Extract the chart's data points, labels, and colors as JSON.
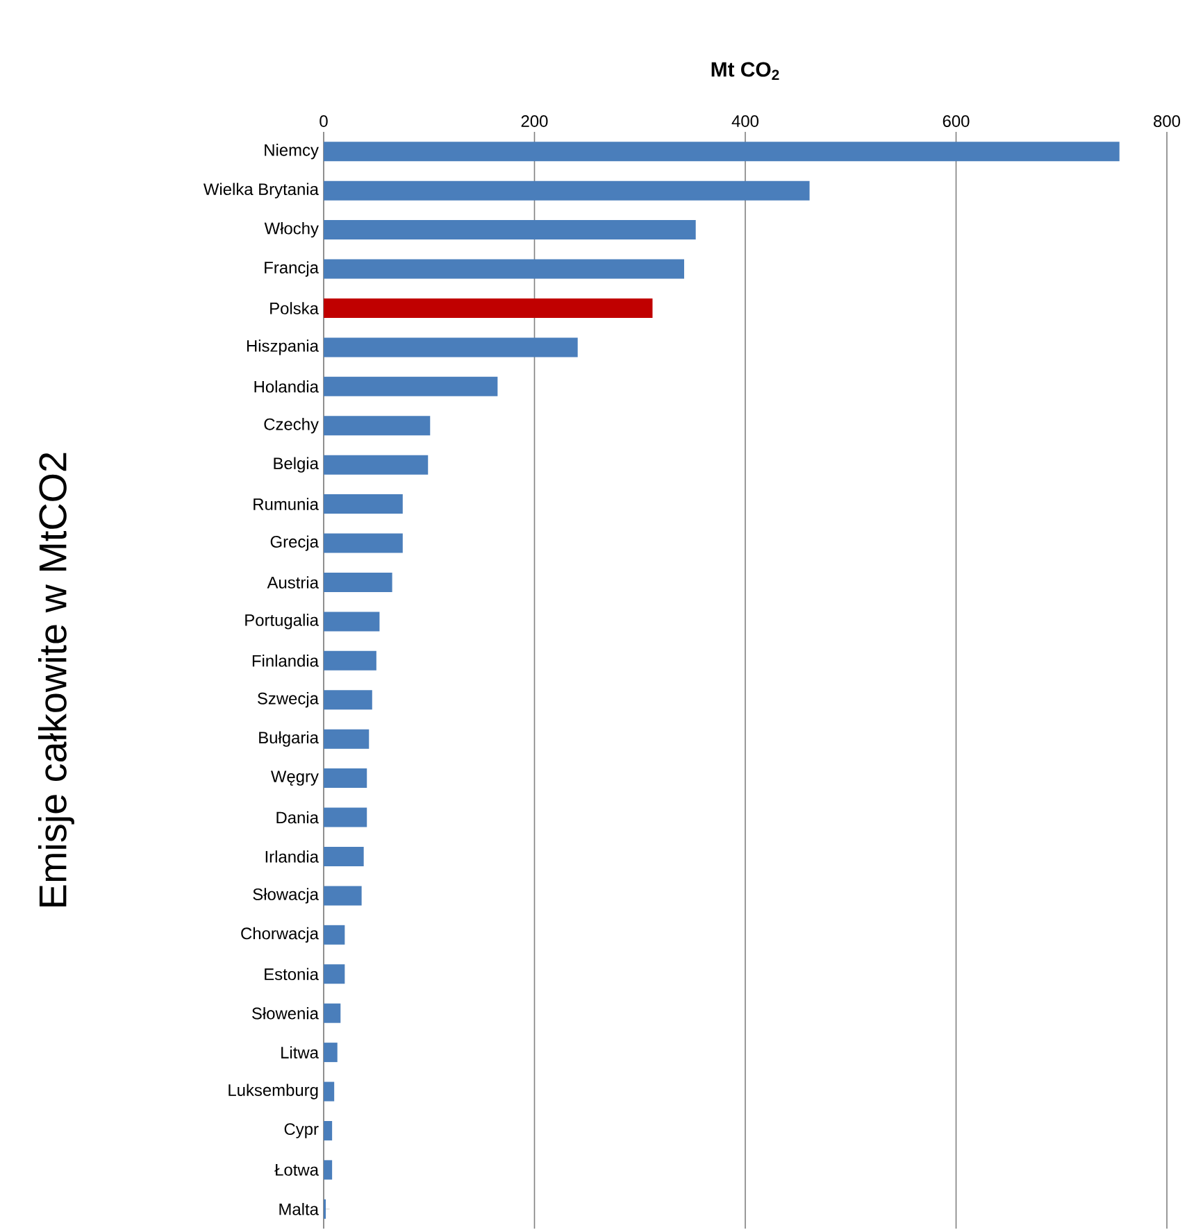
{
  "chart_data": {
    "type": "bar",
    "orientation": "horizontal",
    "title": "Mt CO$_{2}$",
    "ylabel": "Emisje całkowite w MtCO2",
    "categories": [
      "Niemcy",
      "Wielka Brytania",
      "Włochy",
      "Francja",
      "Polska",
      "Hiszpania",
      "Holandia",
      "Czechy",
      "Belgia",
      "Rumunia",
      "Grecja",
      "Austria",
      "Portugalia",
      "Finlandia",
      "Szwecja",
      "Bułgaria",
      "Węgry",
      "Dania",
      "Irlandia",
      "Słowacja",
      "Chorwacja",
      "Estonia",
      "Słowenia",
      "Litwa",
      "Luksemburg",
      "Cypr",
      "Łotwa",
      "Malta"
    ],
    "values": [
      755,
      461,
      353,
      342,
      312,
      241,
      165,
      101,
      99,
      75,
      75,
      65,
      53,
      50,
      46,
      43,
      41,
      41,
      38,
      36,
      20,
      20,
      16,
      13,
      10,
      8,
      8,
      2
    ],
    "colors": [
      "#4a7ebb",
      "#4a7ebb",
      "#4a7ebb",
      "#4a7ebb",
      "#c00000",
      "#4a7ebb",
      "#4a7ebb",
      "#4a7ebb",
      "#4a7ebb",
      "#4a7ebb",
      "#4a7ebb",
      "#4a7ebb",
      "#4a7ebb",
      "#4a7ebb",
      "#4a7ebb",
      "#4a7ebb",
      "#4a7ebb",
      "#4a7ebb",
      "#4a7ebb",
      "#4a7ebb",
      "#4a7ebb",
      "#4a7ebb",
      "#4a7ebb",
      "#4a7ebb",
      "#4a7ebb",
      "#4a7ebb",
      "#4a7ebb",
      "#4a7ebb"
    ],
    "xlim": [
      0,
      800
    ],
    "xticks": [
      0,
      200,
      400,
      600,
      800
    ],
    "grid": "x"
  }
}
